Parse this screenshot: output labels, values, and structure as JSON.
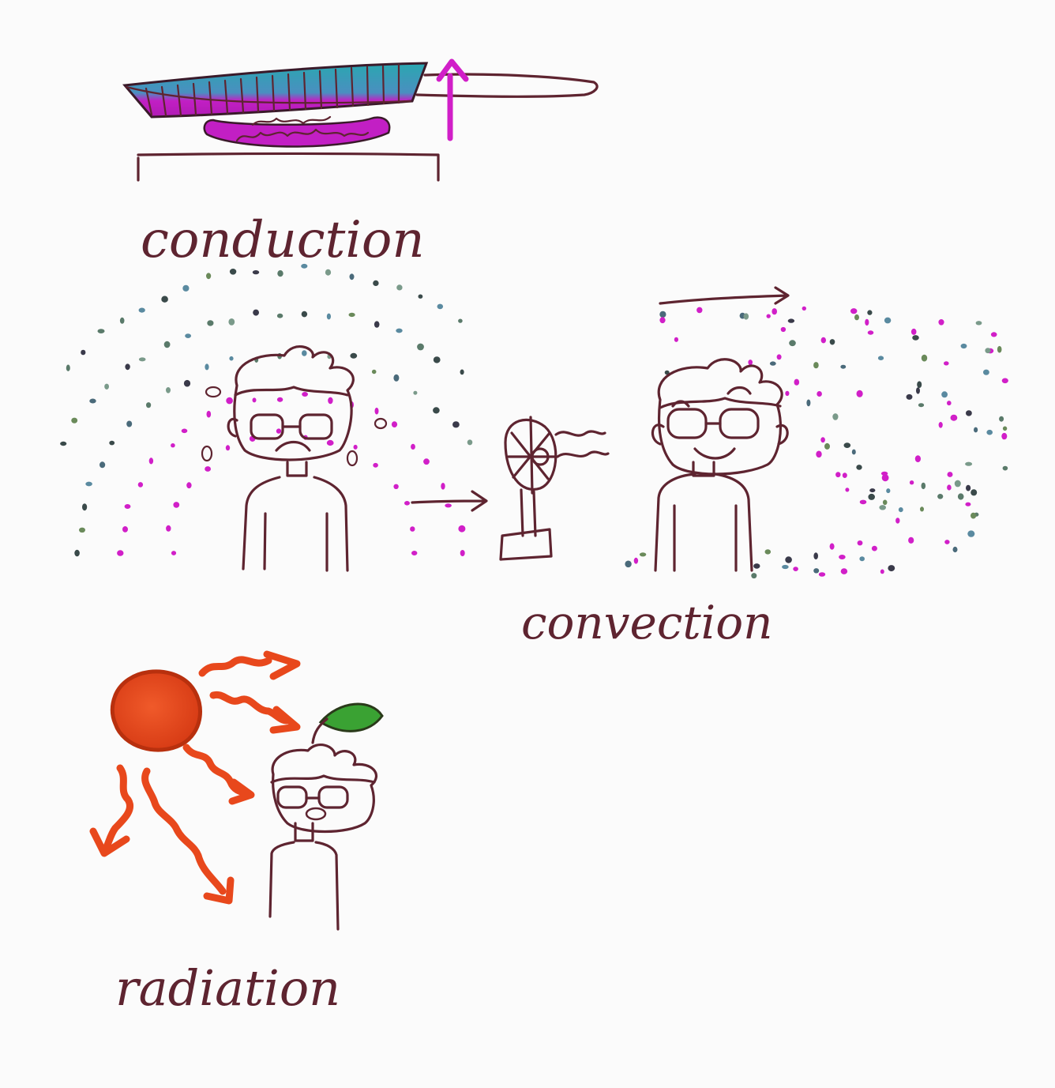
{
  "labels": {
    "conduction": "conduction",
    "convection": "convection",
    "radiation": "radiation"
  },
  "colors": {
    "ink": "#5e2430",
    "heat": "#d11fc8",
    "pan_cool": "#2aa7b0",
    "sun": "#e8481c",
    "leaf": "#3aa233",
    "background": "#fbfbfb"
  },
  "icons": {
    "conduction": [
      "frying-pan-icon",
      "stove-flame-icon",
      "heat-up-arrow-icon"
    ],
    "convection": [
      "hot-person-icon",
      "fan-icon",
      "cool-person-icon",
      "air-flow-arrow-icon"
    ],
    "radiation": [
      "sun-icon",
      "heat-wave-icon",
      "sprout-person-icon"
    ]
  }
}
